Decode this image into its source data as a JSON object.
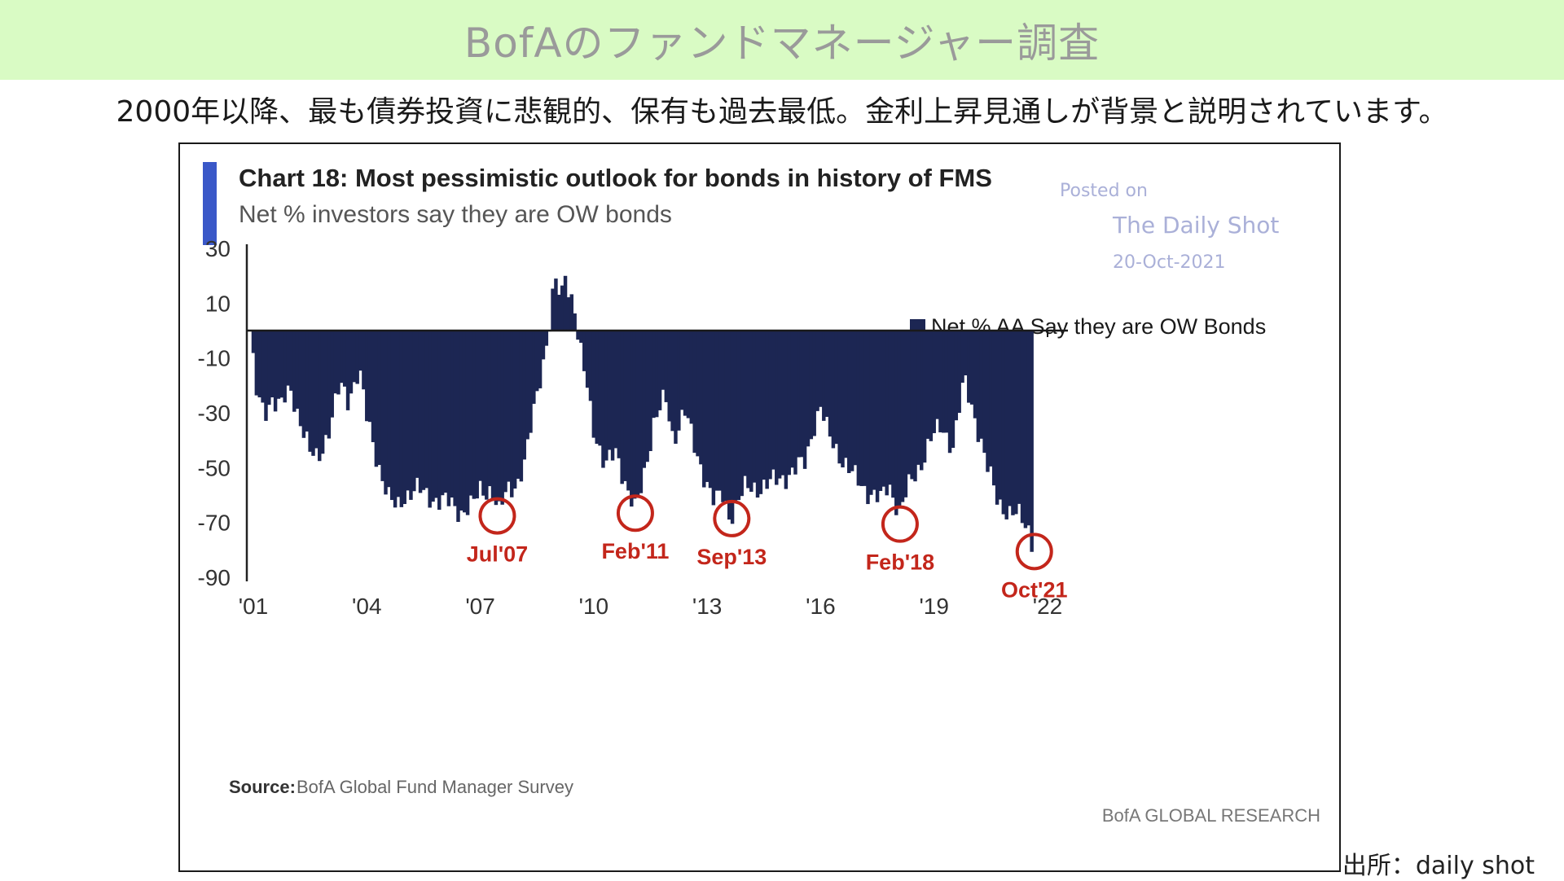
{
  "page": {
    "title": "BofAのファンドマネージャー調査",
    "subtitle": "2000年以降、最も債券投資に悲観的、保有も過去最低。金利上昇見通しが背景と説明されています。",
    "source_note": "出所：daily shot"
  },
  "colors": {
    "title_band": "#d9fbc4",
    "bar": "#1c2653",
    "accent_bar": "#3a58c8",
    "circle": "#c3261b",
    "watermark": "#aab0d8"
  },
  "chart_data": {
    "type": "bar",
    "title": "Chart 18: Most pessimistic outlook for bonds in history of FMS",
    "subtitle": "Net % investors say they are OW bonds",
    "legend": "Net % AA Say they are OW Bonds",
    "legend_position": "top-right",
    "watermark": [
      "Posted on",
      "The Daily Shot",
      "20-Oct-2021"
    ],
    "source_label": "Source:",
    "source_text": "BofA Global Fund Manager Survey",
    "footer_brand": "BofA GLOBAL RESEARCH",
    "ylim": [
      -90,
      30
    ],
    "yticks": [
      "30",
      "10",
      "-10",
      "-30",
      "-50",
      "-70",
      "-90"
    ],
    "ytick_values": [
      30,
      10,
      -10,
      -30,
      -50,
      -70,
      -90
    ],
    "xlim": [
      2001,
      2022
    ],
    "xticks": [
      "'01",
      "'04",
      "'07",
      "'10",
      "'13",
      "'16",
      "'19",
      "'22"
    ],
    "xtick_values": [
      2001,
      2004,
      2007,
      2010,
      2013,
      2016,
      2019,
      2022
    ],
    "grid": false,
    "keypoints": [
      [
        2001.0,
        -12
      ],
      [
        2001.1,
        -25
      ],
      [
        2001.3,
        -30
      ],
      [
        2001.5,
        -24
      ],
      [
        2001.7,
        -28
      ],
      [
        2002.0,
        -22
      ],
      [
        2002.3,
        -35
      ],
      [
        2002.5,
        -45
      ],
      [
        2002.7,
        -47
      ],
      [
        2003.0,
        -36
      ],
      [
        2003.3,
        -20
      ],
      [
        2003.5,
        -25
      ],
      [
        2003.8,
        -14
      ],
      [
        2004.0,
        -32
      ],
      [
        2004.3,
        -48
      ],
      [
        2004.6,
        -62
      ],
      [
        2004.8,
        -65
      ],
      [
        2005.0,
        -60
      ],
      [
        2005.3,
        -58
      ],
      [
        2005.6,
        -60
      ],
      [
        2005.9,
        -62
      ],
      [
        2006.2,
        -63
      ],
      [
        2006.5,
        -66
      ],
      [
        2006.8,
        -64
      ],
      [
        2007.0,
        -58
      ],
      [
        2007.3,
        -58
      ],
      [
        2007.5,
        -67
      ],
      [
        2007.7,
        -58
      ],
      [
        2008.0,
        -55
      ],
      [
        2008.2,
        -48
      ],
      [
        2008.4,
        -30
      ],
      [
        2008.6,
        -15
      ],
      [
        2008.8,
        -2
      ],
      [
        2008.9,
        10
      ],
      [
        2009.0,
        17
      ],
      [
        2009.15,
        12
      ],
      [
        2009.25,
        22
      ],
      [
        2009.35,
        15
      ],
      [
        2009.5,
        8
      ],
      [
        2009.6,
        -5
      ],
      [
        2009.8,
        -18
      ],
      [
        2010.0,
        -35
      ],
      [
        2010.3,
        -50
      ],
      [
        2010.6,
        -44
      ],
      [
        2010.9,
        -58
      ],
      [
        2011.1,
        -66
      ],
      [
        2011.3,
        -55
      ],
      [
        2011.6,
        -32
      ],
      [
        2011.9,
        -25
      ],
      [
        2012.1,
        -40
      ],
      [
        2012.4,
        -28
      ],
      [
        2012.7,
        -45
      ],
      [
        2013.0,
        -55
      ],
      [
        2013.2,
        -63
      ],
      [
        2013.4,
        -60
      ],
      [
        2013.6,
        -68
      ],
      [
        2013.8,
        -62
      ],
      [
        2014.0,
        -58
      ],
      [
        2014.4,
        -57
      ],
      [
        2014.8,
        -55
      ],
      [
        2015.2,
        -52
      ],
      [
        2015.6,
        -48
      ],
      [
        2015.8,
        -35
      ],
      [
        2016.0,
        -28
      ],
      [
        2016.2,
        -38
      ],
      [
        2016.5,
        -45
      ],
      [
        2016.8,
        -52
      ],
      [
        2017.2,
        -58
      ],
      [
        2017.6,
        -62
      ],
      [
        2017.8,
        -56
      ],
      [
        2018.1,
        -66
      ],
      [
        2018.3,
        -58
      ],
      [
        2018.6,
        -50
      ],
      [
        2018.9,
        -40
      ],
      [
        2019.2,
        -35
      ],
      [
        2019.5,
        -42
      ],
      [
        2019.8,
        -18
      ],
      [
        2020.1,
        -32
      ],
      [
        2020.4,
        -50
      ],
      [
        2020.7,
        -62
      ],
      [
        2021.0,
        -67
      ],
      [
        2021.3,
        -68
      ],
      [
        2021.5,
        -72
      ],
      [
        2021.65,
        -80
      ]
    ],
    "annotations": [
      {
        "label": "Jul'07",
        "x": 2007.45,
        "y": -67
      },
      {
        "label": "Feb'11",
        "x": 2011.1,
        "y": -66
      },
      {
        "label": "Sep'13",
        "x": 2013.65,
        "y": -68
      },
      {
        "label": "Feb'18",
        "x": 2018.1,
        "y": -70
      },
      {
        "label": "Oct'21",
        "x": 2021.65,
        "y": -80
      }
    ]
  }
}
